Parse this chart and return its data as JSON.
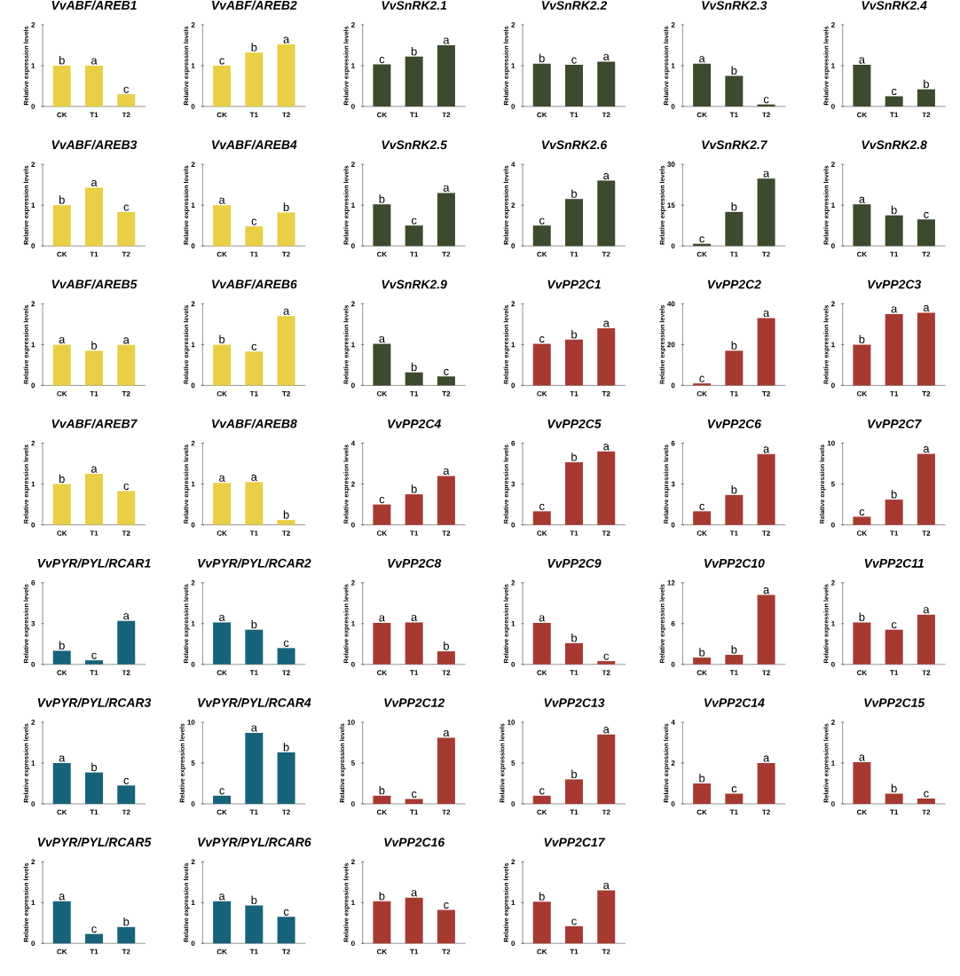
{
  "chart_data": [
    {
      "type": "bar",
      "title": "VvABF/AREB1",
      "ylabel": "Relative expression levels",
      "categories": [
        "CK",
        "T1",
        "T2"
      ],
      "values": [
        1.0,
        1.0,
        0.3
      ],
      "color": "#e8cf45",
      "ylim": [
        0,
        2
      ],
      "yticks": [
        0,
        1,
        2
      ],
      "annotations": [
        {
          "text": "b",
          "x": "CK",
          "y": 1.0
        },
        {
          "text": "a",
          "x": "T1",
          "y": 1.0
        },
        {
          "text": "c",
          "x": "T2",
          "y": 0.3
        }
      ]
    },
    {
      "type": "bar",
      "title": "VvABF/AREB2",
      "ylabel": "Relative expression levels",
      "categories": [
        "CK",
        "T1",
        "T2"
      ],
      "values": [
        1.0,
        1.32,
        1.52
      ],
      "color": "#e8cf45",
      "ylim": [
        0,
        2
      ],
      "yticks": [
        0,
        1,
        2
      ],
      "annotations": [
        {
          "text": "c",
          "x": "CK",
          "y": 1.0
        },
        {
          "text": "b",
          "x": "T1",
          "y": 1.32
        },
        {
          "text": "a",
          "x": "T2",
          "y": 1.52
        }
      ]
    },
    {
      "type": "bar",
      "title": "VvSnRK2.1",
      "ylabel": "Relative expression levels",
      "categories": [
        "CK",
        "T1",
        "T2"
      ],
      "values": [
        1.03,
        1.22,
        1.5
      ],
      "color": "#3c4a2e",
      "ylim": [
        0,
        2
      ],
      "yticks": [
        0,
        1,
        2
      ],
      "annotations": [
        {
          "text": "c",
          "x": "CK",
          "y": 1.03
        },
        {
          "text": "b",
          "x": "T1",
          "y": 1.22
        },
        {
          "text": "a",
          "x": "T2",
          "y": 1.5
        }
      ]
    },
    {
      "type": "bar",
      "title": "VvSnRK2.2",
      "ylabel": "Relative expression levels",
      "categories": [
        "CK",
        "T1",
        "T2"
      ],
      "values": [
        1.05,
        1.02,
        1.1
      ],
      "color": "#3c4a2e",
      "ylim": [
        0,
        2
      ],
      "yticks": [
        0,
        1,
        2
      ],
      "annotations": [
        {
          "text": "b",
          "x": "CK",
          "y": 1.05
        },
        {
          "text": "c",
          "x": "T1",
          "y": 1.02
        },
        {
          "text": "a",
          "x": "T2",
          "y": 1.1
        }
      ]
    },
    {
      "type": "bar",
      "title": "VvSnRK2.3",
      "ylabel": "Relative expression levels",
      "categories": [
        "CK",
        "T1",
        "T2"
      ],
      "values": [
        1.05,
        0.75,
        0.05
      ],
      "color": "#3c4a2e",
      "ylim": [
        0,
        2
      ],
      "yticks": [
        0,
        1,
        2
      ],
      "annotations": [
        {
          "text": "a",
          "x": "CK",
          "y": 1.05
        },
        {
          "text": "b",
          "x": "T1",
          "y": 0.75
        },
        {
          "text": "c",
          "x": "T2",
          "y": 0.05
        }
      ]
    },
    {
      "type": "bar",
      "title": "VvSnRK2.4",
      "ylabel": "Relative expression levels",
      "categories": [
        "CK",
        "T1",
        "T2"
      ],
      "values": [
        1.02,
        0.25,
        0.42
      ],
      "color": "#3c4a2e",
      "ylim": [
        0,
        2
      ],
      "yticks": [
        0,
        1,
        2
      ],
      "annotations": [
        {
          "text": "a",
          "x": "CK",
          "y": 1.02
        },
        {
          "text": "c",
          "x": "T1",
          "y": 0.25
        },
        {
          "text": "b",
          "x": "T2",
          "y": 0.42
        }
      ]
    },
    {
      "type": "bar",
      "title": "VvABF/AREB3",
      "ylabel": "Relative expression levels",
      "categories": [
        "CK",
        "T1",
        "T2"
      ],
      "values": [
        1.0,
        1.43,
        0.83
      ],
      "color": "#e8cf45",
      "ylim": [
        0,
        2
      ],
      "yticks": [
        0,
        1,
        2
      ],
      "annotations": [
        {
          "text": "b",
          "x": "CK",
          "y": 1.0
        },
        {
          "text": "a",
          "x": "T1",
          "y": 1.43
        },
        {
          "text": "c",
          "x": "T2",
          "y": 0.83
        }
      ]
    },
    {
      "type": "bar",
      "title": "VvABF/AREB4",
      "ylabel": "Relative expression levels",
      "categories": [
        "CK",
        "T1",
        "T2"
      ],
      "values": [
        1.0,
        0.48,
        0.82
      ],
      "color": "#e8cf45",
      "ylim": [
        0,
        2
      ],
      "yticks": [
        0,
        1,
        2
      ],
      "annotations": [
        {
          "text": "a",
          "x": "CK",
          "y": 1.0
        },
        {
          "text": "c",
          "x": "T1",
          "y": 0.48
        },
        {
          "text": "b",
          "x": "T2",
          "y": 0.82
        }
      ]
    },
    {
      "type": "bar",
      "title": "VvSnRK2.5",
      "ylabel": "Relative expression levels",
      "categories": [
        "CK",
        "T1",
        "T2"
      ],
      "values": [
        1.02,
        0.5,
        1.3
      ],
      "color": "#3c4a2e",
      "ylim": [
        0,
        2
      ],
      "yticks": [
        0,
        1,
        2
      ],
      "annotations": [
        {
          "text": "b",
          "x": "CK",
          "y": 1.02
        },
        {
          "text": "c",
          "x": "T1",
          "y": 0.5
        },
        {
          "text": "a",
          "x": "T2",
          "y": 1.3
        }
      ]
    },
    {
      "type": "bar",
      "title": "VvSnRK2.6",
      "ylabel": "Relative expression levels",
      "categories": [
        "CK",
        "T1",
        "T2"
      ],
      "values": [
        1.0,
        2.3,
        3.2
      ],
      "color": "#3c4a2e",
      "ylim": [
        0,
        4
      ],
      "yticks": [
        0,
        2,
        4
      ],
      "annotations": [
        {
          "text": "c",
          "x": "CK",
          "y": 1.0
        },
        {
          "text": "b",
          "x": "T1",
          "y": 2.3
        },
        {
          "text": "a",
          "x": "T2",
          "y": 3.2
        }
      ]
    },
    {
      "type": "bar",
      "title": "VvSnRK2.7",
      "ylabel": "Relative expression levels",
      "categories": [
        "CK",
        "T1",
        "T2"
      ],
      "values": [
        0.8,
        12.5,
        24.8
      ],
      "color": "#3c4a2e",
      "ylim": [
        0,
        30
      ],
      "yticks": [
        0,
        15,
        30
      ],
      "annotations": [
        {
          "text": "c",
          "x": "CK",
          "y": 0.8
        },
        {
          "text": "b",
          "x": "T1",
          "y": 12.5
        },
        {
          "text": "a",
          "x": "T2",
          "y": 24.8
        }
      ]
    },
    {
      "type": "bar",
      "title": "VvSnRK2.8",
      "ylabel": "Relative expression levels",
      "categories": [
        "CK",
        "T1",
        "T2"
      ],
      "values": [
        1.02,
        0.75,
        0.65
      ],
      "color": "#3c4a2e",
      "ylim": [
        0,
        2
      ],
      "yticks": [
        0,
        1,
        2
      ],
      "annotations": [
        {
          "text": "a",
          "x": "CK",
          "y": 1.02
        },
        {
          "text": "b",
          "x": "T1",
          "y": 0.75
        },
        {
          "text": "c",
          "x": "T2",
          "y": 0.65
        }
      ]
    },
    {
      "type": "bar",
      "title": "VvABF/AREB5",
      "ylabel": "Relative expression levels",
      "categories": [
        "CK",
        "T1",
        "T2"
      ],
      "values": [
        1.0,
        0.85,
        0.99
      ],
      "color": "#e8cf45",
      "ylim": [
        0,
        2
      ],
      "yticks": [
        0,
        1,
        2
      ],
      "annotations": [
        {
          "text": "a",
          "x": "CK",
          "y": 1.0
        },
        {
          "text": "b",
          "x": "T1",
          "y": 0.85
        },
        {
          "text": "a",
          "x": "T2",
          "y": 0.99
        }
      ]
    },
    {
      "type": "bar",
      "title": "VvABF/AREB6",
      "ylabel": "Relative expression levels",
      "categories": [
        "CK",
        "T1",
        "T2"
      ],
      "values": [
        1.0,
        0.83,
        1.7
      ],
      "color": "#e8cf45",
      "ylim": [
        0,
        2
      ],
      "yticks": [
        0,
        1,
        2
      ],
      "annotations": [
        {
          "text": "b",
          "x": "CK",
          "y": 1.0
        },
        {
          "text": "c",
          "x": "T1",
          "y": 0.83
        },
        {
          "text": "a",
          "x": "T2",
          "y": 1.7
        }
      ]
    },
    {
      "type": "bar",
      "title": "VvSnRK2.9",
      "ylabel": "Relative expression levels",
      "categories": [
        "CK",
        "T1",
        "T2"
      ],
      "values": [
        1.02,
        0.32,
        0.22
      ],
      "color": "#3c4a2e",
      "ylim": [
        0,
        2
      ],
      "yticks": [
        0,
        1,
        2
      ],
      "annotations": [
        {
          "text": "a",
          "x": "CK",
          "y": 1.02
        },
        {
          "text": "b",
          "x": "T1",
          "y": 0.32
        },
        {
          "text": "c",
          "x": "T2",
          "y": 0.22
        }
      ]
    },
    {
      "type": "bar",
      "title": "VvPP2C1",
      "ylabel": "Relative expression levels",
      "categories": [
        "CK",
        "T1",
        "T2"
      ],
      "values": [
        1.02,
        1.12,
        1.4
      ],
      "color": "#a63a31",
      "ylim": [
        0,
        2
      ],
      "yticks": [
        0,
        1,
        2
      ],
      "annotations": [
        {
          "text": "c",
          "x": "CK",
          "y": 1.02
        },
        {
          "text": "b",
          "x": "T1",
          "y": 1.12
        },
        {
          "text": "a",
          "x": "T2",
          "y": 1.4
        }
      ]
    },
    {
      "type": "bar",
      "title": "VvPP2C2",
      "ylabel": "Relative expression levels",
      "categories": [
        "CK",
        "T1",
        "T2"
      ],
      "values": [
        1,
        17,
        33
      ],
      "color": "#a63a31",
      "ylim": [
        0,
        40
      ],
      "yticks": [
        0,
        20,
        40
      ],
      "annotations": [
        {
          "text": "c",
          "x": "CK",
          "y": 1
        },
        {
          "text": "b",
          "x": "T1",
          "y": 17
        },
        {
          "text": "a",
          "x": "T2",
          "y": 33
        }
      ]
    },
    {
      "type": "bar",
      "title": "VvPP2C3",
      "ylabel": "Relative expression levels",
      "categories": [
        "CK",
        "T1",
        "T2"
      ],
      "values": [
        1.0,
        1.75,
        1.78
      ],
      "color": "#a63a31",
      "ylim": [
        0,
        2
      ],
      "yticks": [
        0,
        1,
        2
      ],
      "annotations": [
        {
          "text": "b",
          "x": "CK",
          "y": 1.0
        },
        {
          "text": "a",
          "x": "T1",
          "y": 1.75
        },
        {
          "text": "a",
          "x": "T2",
          "y": 1.78
        }
      ]
    },
    {
      "type": "bar",
      "title": "VvABF/AREB7",
      "ylabel": "Relative expression levels",
      "categories": [
        "CK",
        "T1",
        "T2"
      ],
      "values": [
        1.0,
        1.25,
        0.83
      ],
      "color": "#e8cf45",
      "ylim": [
        0,
        2
      ],
      "yticks": [
        0,
        1,
        2
      ],
      "annotations": [
        {
          "text": "b",
          "x": "CK",
          "y": 1.0
        },
        {
          "text": "a",
          "x": "T1",
          "y": 1.25
        },
        {
          "text": "c",
          "x": "T2",
          "y": 0.83
        }
      ]
    },
    {
      "type": "bar",
      "title": "VvABF/AREB8",
      "ylabel": "Relative expression levels",
      "categories": [
        "CK",
        "T1",
        "T2"
      ],
      "values": [
        1.03,
        1.05,
        0.12
      ],
      "color": "#e8cf45",
      "ylim": [
        0,
        2
      ],
      "yticks": [
        0,
        1,
        2
      ],
      "annotations": [
        {
          "text": "a",
          "x": "CK",
          "y": 1.03
        },
        {
          "text": "a",
          "x": "T1",
          "y": 1.05
        },
        {
          "text": "b",
          "x": "T2",
          "y": 0.12
        }
      ]
    },
    {
      "type": "bar",
      "title": "VvPP2C4",
      "ylabel": "Relative expression levels",
      "categories": [
        "CK",
        "T1",
        "T2"
      ],
      "values": [
        1.0,
        1.5,
        2.4
      ],
      "color": "#a63a31",
      "ylim": [
        0,
        4
      ],
      "yticks": [
        0,
        2,
        4
      ],
      "annotations": [
        {
          "text": "c",
          "x": "CK",
          "y": 1.0
        },
        {
          "text": "b",
          "x": "T1",
          "y": 1.5
        },
        {
          "text": "a",
          "x": "T2",
          "y": 2.4
        }
      ]
    },
    {
      "type": "bar",
      "title": "VvPP2C5",
      "ylabel": "Relative expression levels",
      "categories": [
        "CK",
        "T1",
        "T2"
      ],
      "values": [
        1.0,
        4.6,
        5.4
      ],
      "color": "#a63a31",
      "ylim": [
        0,
        6
      ],
      "yticks": [
        0,
        3,
        6
      ],
      "annotations": [
        {
          "text": "c",
          "x": "CK",
          "y": 1.0
        },
        {
          "text": "b",
          "x": "T1",
          "y": 4.6
        },
        {
          "text": "a",
          "x": "T2",
          "y": 5.4
        }
      ]
    },
    {
      "type": "bar",
      "title": "VvPP2C6",
      "ylabel": "Relative expression levels",
      "categories": [
        "CK",
        "T1",
        "T2"
      ],
      "values": [
        1.0,
        2.2,
        5.2
      ],
      "color": "#a63a31",
      "ylim": [
        0,
        6
      ],
      "yticks": [
        0,
        3,
        6
      ],
      "annotations": [
        {
          "text": "c",
          "x": "CK",
          "y": 1.0
        },
        {
          "text": "b",
          "x": "T1",
          "y": 2.2
        },
        {
          "text": "a",
          "x": "T2",
          "y": 5.2
        }
      ]
    },
    {
      "type": "bar",
      "title": "VvPP2C7",
      "ylabel": "Relative expression levels",
      "categories": [
        "CK",
        "T1",
        "T2"
      ],
      "values": [
        1.0,
        3.1,
        8.7
      ],
      "color": "#a63a31",
      "ylim": [
        0,
        10
      ],
      "yticks": [
        0,
        5,
        10
      ],
      "annotations": [
        {
          "text": "c",
          "x": "CK",
          "y": 1.0
        },
        {
          "text": "b",
          "x": "T1",
          "y": 3.1
        },
        {
          "text": "a",
          "x": "T2",
          "y": 8.7
        }
      ]
    },
    {
      "type": "bar",
      "title": "VvPYR/PYL/RCAR1",
      "ylabel": "Relative expression levels",
      "categories": [
        "CK",
        "T1",
        "T2"
      ],
      "values": [
        1.0,
        0.3,
        3.2
      ],
      "color": "#17637a",
      "ylim": [
        0,
        6
      ],
      "yticks": [
        0,
        3,
        6
      ],
      "annotations": [
        {
          "text": "b",
          "x": "CK",
          "y": 1.0
        },
        {
          "text": "c",
          "x": "T1",
          "y": 0.3
        },
        {
          "text": "a",
          "x": "T2",
          "y": 3.2
        }
      ]
    },
    {
      "type": "bar",
      "title": "VvPYR/PYL/RCAR2",
      "ylabel": "Relative expression levels",
      "categories": [
        "CK",
        "T1",
        "T2"
      ],
      "values": [
        1.03,
        0.85,
        0.4
      ],
      "color": "#17637a",
      "ylim": [
        0,
        2
      ],
      "yticks": [
        0,
        1,
        2
      ],
      "annotations": [
        {
          "text": "a",
          "x": "CK",
          "y": 1.03
        },
        {
          "text": "b",
          "x": "T1",
          "y": 0.85
        },
        {
          "text": "c",
          "x": "T2",
          "y": 0.4
        }
      ]
    },
    {
      "type": "bar",
      "title": "VvPP2C8",
      "ylabel": "Relative expression levels",
      "categories": [
        "CK",
        "T1",
        "T2"
      ],
      "values": [
        1.02,
        1.03,
        0.32
      ],
      "color": "#a63a31",
      "ylim": [
        0,
        2
      ],
      "yticks": [
        0,
        1,
        2
      ],
      "annotations": [
        {
          "text": "a",
          "x": "CK",
          "y": 1.02
        },
        {
          "text": "a",
          "x": "T1",
          "y": 1.03
        },
        {
          "text": "b",
          "x": "T2",
          "y": 0.32
        }
      ]
    },
    {
      "type": "bar",
      "title": "VvPP2C9",
      "ylabel": "Relative expression levels",
      "categories": [
        "CK",
        "T1",
        "T2"
      ],
      "values": [
        1.02,
        0.52,
        0.08
      ],
      "color": "#a63a31",
      "ylim": [
        0,
        2
      ],
      "yticks": [
        0,
        1,
        2
      ],
      "annotations": [
        {
          "text": "a",
          "x": "CK",
          "y": 1.02
        },
        {
          "text": "b",
          "x": "T1",
          "y": 0.52
        },
        {
          "text": "c",
          "x": "T2",
          "y": 0.08
        }
      ]
    },
    {
      "type": "bar",
      "title": "VvPP2C10",
      "ylabel": "Relative expression levels",
      "categories": [
        "CK",
        "T1",
        "T2"
      ],
      "values": [
        1.0,
        1.4,
        10.2
      ],
      "color": "#a63a31",
      "ylim": [
        0,
        12
      ],
      "yticks": [
        0,
        6,
        12
      ],
      "annotations": [
        {
          "text": "b",
          "x": "CK",
          "y": 1.0
        },
        {
          "text": "b",
          "x": "T1",
          "y": 1.4
        },
        {
          "text": "a",
          "x": "T2",
          "y": 10.2
        }
      ]
    },
    {
      "type": "bar",
      "title": "VvPP2C11",
      "ylabel": "Relative expression levels",
      "categories": [
        "CK",
        "T1",
        "T2"
      ],
      "values": [
        1.03,
        0.85,
        1.22
      ],
      "color": "#a63a31",
      "ylim": [
        0,
        2
      ],
      "yticks": [
        0,
        1,
        2
      ],
      "annotations": [
        {
          "text": "b",
          "x": "CK",
          "y": 1.03
        },
        {
          "text": "c",
          "x": "T1",
          "y": 0.85
        },
        {
          "text": "a",
          "x": "T2",
          "y": 1.22
        }
      ]
    },
    {
      "type": "bar",
      "title": "VvPYR/PYL/RCAR3",
      "ylabel": "Relative expression levels",
      "categories": [
        "CK",
        "T1",
        "T2"
      ],
      "values": [
        1.0,
        0.77,
        0.45
      ],
      "color": "#17637a",
      "ylim": [
        0,
        2
      ],
      "yticks": [
        0,
        1,
        2
      ],
      "annotations": [
        {
          "text": "a",
          "x": "CK",
          "y": 1.0
        },
        {
          "text": "b",
          "x": "T1",
          "y": 0.77
        },
        {
          "text": "c",
          "x": "T2",
          "y": 0.45
        }
      ]
    },
    {
      "type": "bar",
      "title": "VvPYR/PYL/RCAR4",
      "ylabel": "Relative expression levels",
      "categories": [
        "CK",
        "T1",
        "T2"
      ],
      "values": [
        1.0,
        8.7,
        6.3
      ],
      "color": "#17637a",
      "ylim": [
        0,
        10
      ],
      "yticks": [
        0,
        5,
        10
      ],
      "annotations": [
        {
          "text": "c",
          "x": "CK",
          "y": 1.0
        },
        {
          "text": "a",
          "x": "T1",
          "y": 8.7
        },
        {
          "text": "b",
          "x": "T2",
          "y": 6.3
        }
      ]
    },
    {
      "type": "bar",
      "title": "VvPP2C12",
      "ylabel": "Relative expression levels",
      "categories": [
        "CK",
        "T1",
        "T2"
      ],
      "values": [
        1.0,
        0.6,
        8.1
      ],
      "color": "#a63a31",
      "ylim": [
        0,
        10
      ],
      "yticks": [
        0,
        5,
        10
      ],
      "annotations": [
        {
          "text": "b",
          "x": "CK",
          "y": 1.0
        },
        {
          "text": "c",
          "x": "T1",
          "y": 0.6
        },
        {
          "text": "a",
          "x": "T2",
          "y": 8.1
        }
      ]
    },
    {
      "type": "bar",
      "title": "VvPP2C13",
      "ylabel": "Relative expression levels",
      "categories": [
        "CK",
        "T1",
        "T2"
      ],
      "values": [
        1.0,
        3.0,
        8.5
      ],
      "color": "#a63a31",
      "ylim": [
        0,
        10
      ],
      "yticks": [
        0,
        5,
        10
      ],
      "annotations": [
        {
          "text": "c",
          "x": "CK",
          "y": 1.0
        },
        {
          "text": "b",
          "x": "T1",
          "y": 3.0
        },
        {
          "text": "a",
          "x": "T2",
          "y": 8.5
        }
      ]
    },
    {
      "type": "bar",
      "title": "VvPP2C14",
      "ylabel": "Relative expression levels",
      "categories": [
        "CK",
        "T1",
        "T2"
      ],
      "values": [
        1.0,
        0.5,
        2.0
      ],
      "color": "#a63a31",
      "ylim": [
        0,
        4
      ],
      "yticks": [
        0,
        2,
        4
      ],
      "annotations": [
        {
          "text": "b",
          "x": "CK",
          "y": 1.0
        },
        {
          "text": "c",
          "x": "T1",
          "y": 0.5
        },
        {
          "text": "a",
          "x": "T2",
          "y": 2.0
        }
      ]
    },
    {
      "type": "bar",
      "title": "VvPP2C15",
      "ylabel": "Relative expression levels",
      "categories": [
        "CK",
        "T1",
        "T2"
      ],
      "values": [
        1.02,
        0.25,
        0.13
      ],
      "color": "#a63a31",
      "ylim": [
        0,
        2
      ],
      "yticks": [
        0,
        1,
        2
      ],
      "annotations": [
        {
          "text": "a",
          "x": "CK",
          "y": 1.02
        },
        {
          "text": "b",
          "x": "T1",
          "y": 0.25
        },
        {
          "text": "c",
          "x": "T2",
          "y": 0.13
        }
      ]
    },
    {
      "type": "bar",
      "title": "VvPYR/PYL/RCAR5",
      "ylabel": "Relative expression levels",
      "categories": [
        "CK",
        "T1",
        "T2"
      ],
      "values": [
        1.03,
        0.23,
        0.4
      ],
      "color": "#17637a",
      "ylim": [
        0,
        2
      ],
      "yticks": [
        0,
        1,
        2
      ],
      "annotations": [
        {
          "text": "a",
          "x": "CK",
          "y": 1.03
        },
        {
          "text": "c",
          "x": "T1",
          "y": 0.23
        },
        {
          "text": "b",
          "x": "T2",
          "y": 0.4
        }
      ]
    },
    {
      "type": "bar",
      "title": "VvPYR/PYL/RCAR6",
      "ylabel": "Relative expression levels",
      "categories": [
        "CK",
        "T1",
        "T2"
      ],
      "values": [
        1.03,
        0.93,
        0.65
      ],
      "color": "#17637a",
      "ylim": [
        0,
        2
      ],
      "yticks": [
        0,
        1,
        2
      ],
      "annotations": [
        {
          "text": "a",
          "x": "CK",
          "y": 1.03
        },
        {
          "text": "b",
          "x": "T1",
          "y": 0.93
        },
        {
          "text": "c",
          "x": "T2",
          "y": 0.65
        }
      ]
    },
    {
      "type": "bar",
      "title": "VvPP2C16",
      "ylabel": "Relative expression levels",
      "categories": [
        "CK",
        "T1",
        "T2"
      ],
      "values": [
        1.03,
        1.12,
        0.82
      ],
      "color": "#a63a31",
      "ylim": [
        0,
        2
      ],
      "yticks": [
        0,
        1,
        2
      ],
      "annotations": [
        {
          "text": "b",
          "x": "CK",
          "y": 1.03
        },
        {
          "text": "a",
          "x": "T1",
          "y": 1.12
        },
        {
          "text": "c",
          "x": "T2",
          "y": 0.82
        }
      ]
    },
    {
      "type": "bar",
      "title": "VvPP2C17",
      "ylabel": "Relative expression levels",
      "categories": [
        "CK",
        "T1",
        "T2"
      ],
      "values": [
        1.02,
        0.42,
        1.3
      ],
      "color": "#a63a31",
      "ylim": [
        0,
        2
      ],
      "yticks": [
        0,
        1,
        2
      ],
      "annotations": [
        {
          "text": "b",
          "x": "CK",
          "y": 1.02
        },
        {
          "text": "c",
          "x": "T1",
          "y": 0.42
        },
        {
          "text": "a",
          "x": "T2",
          "y": 1.3
        }
      ]
    }
  ]
}
